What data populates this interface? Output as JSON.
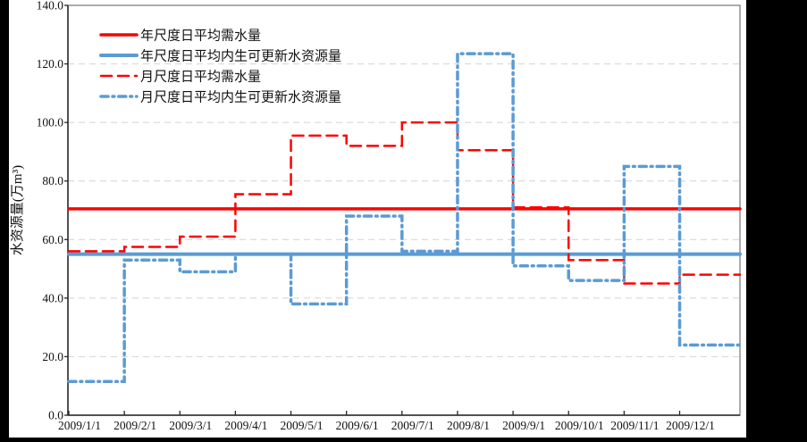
{
  "page": {
    "background_color": "#000000",
    "chart_background_color": "#ffffff"
  },
  "chart_data": {
    "type": "line",
    "title": "",
    "xlabel": "",
    "ylabel": "水资源量(万m³)",
    "ylim": [
      0,
      140
    ],
    "y_ticks": [
      0,
      20,
      40,
      60,
      80,
      100,
      120,
      140
    ],
    "y_tick_labels": [
      "0.0",
      "20.0",
      "40.0",
      "60.0",
      "80.0",
      "100.0",
      "120.0",
      "140.0"
    ],
    "x_tick_labels": [
      "2009/1/1",
      "2009/2/1",
      "2009/3/1",
      "2009/4/1",
      "2009/5/1",
      "2009/6/1",
      "2009/7/1",
      "2009/8/1",
      "2009/9/1",
      "2009/10/1",
      "2009/11/1",
      "2009/12/1"
    ],
    "grid": "horizontal dashed gridlines at 20-unit intervals",
    "legend_position": "top-left inside plot, no border",
    "colors": {
      "red": "#FF0000",
      "blue": "#5B9BD5",
      "grid": "#D8D8D8",
      "border": "#7F7F7F",
      "axis": "#262626"
    },
    "series": [
      {
        "name": "年尺度日平均需水量",
        "kind": "constant",
        "value": 70.5,
        "style": "solid",
        "color": "#FF0000",
        "width": 3.5,
        "data_name": "annual-demand-line"
      },
      {
        "name": "年尺度日平均内生可更新水资源量",
        "kind": "constant",
        "value": 55,
        "style": "solid",
        "color": "#5B9BD5",
        "width": 4,
        "data_name": "annual-renewable-line"
      },
      {
        "name": "月尺度日平均需水量",
        "kind": "monthly-step",
        "values": [
          56,
          57.5,
          61,
          75.5,
          95.5,
          92,
          100,
          90.5,
          71,
          53,
          45,
          48
        ],
        "style": "dashed",
        "color": "#FF0000",
        "width": 2.5,
        "data_name": "monthly-demand-line"
      },
      {
        "name": "月尺度日平均内生可更新水资源量",
        "kind": "monthly-step",
        "values": [
          11.5,
          53,
          49,
          55,
          38,
          68,
          56,
          123.5,
          51,
          46,
          85,
          24
        ],
        "style": "dash-dot",
        "color": "#5B9BD5",
        "width": 3.5,
        "data_name": "monthly-renewable-line"
      }
    ]
  }
}
